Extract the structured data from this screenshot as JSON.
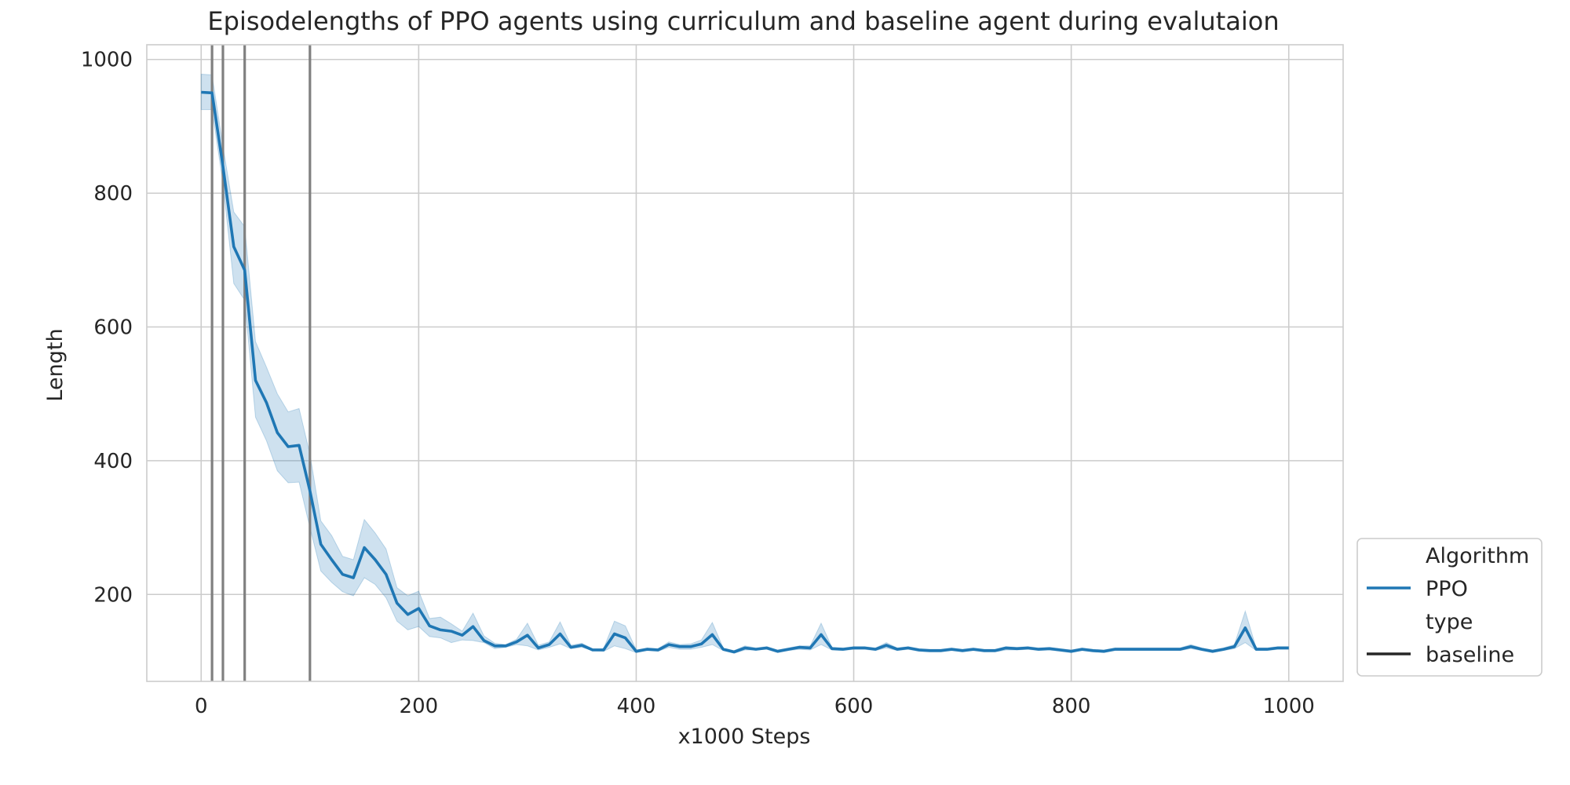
{
  "chart_data": {
    "type": "line",
    "title": "Episodelengths of PPO agents using curriculum and baseline agent during evalutaion",
    "xlabel": "x1000 Steps",
    "ylabel": "Length",
    "xlim": [
      -50,
      1050
    ],
    "ylim": [
      70,
      1022
    ],
    "xticks": [
      0,
      200,
      400,
      600,
      800,
      1000
    ],
    "yticks": [
      200,
      400,
      600,
      800,
      1000
    ],
    "grid": true,
    "series": [
      {
        "name": "PPO",
        "color": "#1f77b4",
        "x": [
          0,
          10,
          20,
          30,
          40,
          50,
          60,
          70,
          80,
          90,
          100,
          110,
          120,
          130,
          140,
          150,
          160,
          170,
          180,
          190,
          200,
          210,
          220,
          230,
          240,
          250,
          260,
          270,
          280,
          290,
          300,
          310,
          320,
          330,
          340,
          350,
          360,
          370,
          380,
          390,
          400,
          410,
          420,
          430,
          440,
          450,
          460,
          470,
          480,
          490,
          500,
          510,
          520,
          530,
          540,
          550,
          560,
          570,
          580,
          590,
          600,
          610,
          620,
          630,
          640,
          650,
          660,
          670,
          680,
          690,
          700,
          710,
          720,
          730,
          740,
          750,
          760,
          770,
          780,
          790,
          800,
          810,
          820,
          830,
          840,
          850,
          860,
          870,
          880,
          890,
          900,
          910,
          920,
          930,
          940,
          950,
          960,
          970,
          980,
          990,
          1000
        ],
        "y": [
          951,
          950,
          840,
          720,
          685,
          520,
          487,
          442,
          421,
          423,
          355,
          275,
          252,
          230,
          225,
          270,
          252,
          230,
          187,
          170,
          179,
          153,
          147,
          145,
          139,
          152,
          131,
          123,
          123,
          129,
          139,
          120,
          125,
          141,
          121,
          124,
          117,
          117,
          141,
          135,
          115,
          118,
          117,
          125,
          122,
          122,
          126,
          140,
          118,
          114,
          120,
          118,
          120,
          115,
          118,
          121,
          120,
          140,
          119,
          118,
          120,
          120,
          118,
          124,
          118,
          120,
          117,
          116,
          116,
          118,
          116,
          118,
          116,
          116,
          120,
          119,
          120,
          118,
          119,
          117,
          115,
          118,
          116,
          115,
          118,
          118,
          118,
          118,
          118,
          118,
          118,
          122,
          118,
          115,
          118,
          122,
          150,
          118,
          118,
          120,
          120
        ],
        "lower": [
          925,
          925,
          815,
          665,
          640,
          465,
          430,
          385,
          367,
          368,
          300,
          235,
          218,
          204,
          198,
          225,
          215,
          195,
          160,
          147,
          152,
          137,
          135,
          128,
          132,
          131,
          128,
          119,
          121,
          125,
          123,
          117,
          121,
          126,
          119,
          121,
          116,
          115,
          123,
          119,
          113,
          116,
          115,
          121,
          118,
          118,
          121,
          125,
          116,
          112,
          117,
          117,
          118,
          113,
          116,
          118,
          117,
          125,
          117,
          116,
          118,
          118,
          116,
          120,
          116,
          118,
          115,
          114,
          114,
          116,
          114,
          116,
          114,
          114,
          117,
          117,
          118,
          116,
          117,
          115,
          113,
          116,
          114,
          113,
          116,
          116,
          116,
          116,
          116,
          116,
          116,
          119,
          116,
          113,
          116,
          119,
          128,
          116,
          116,
          118,
          118
        ],
        "upper": [
          978,
          977,
          870,
          772,
          750,
          578,
          540,
          500,
          473,
          478,
          410,
          310,
          288,
          257,
          252,
          312,
          292,
          268,
          210,
          198,
          205,
          164,
          166,
          156,
          145,
          172,
          138,
          127,
          125,
          133,
          157,
          124,
          129,
          159,
          124,
          127,
          119,
          119,
          160,
          153,
          117,
          120,
          119,
          129,
          125,
          126,
          132,
          158,
          120,
          116,
          123,
          120,
          122,
          117,
          120,
          123,
          123,
          157,
          121,
          120,
          122,
          122,
          120,
          128,
          120,
          122,
          119,
          118,
          118,
          120,
          118,
          120,
          118,
          118,
          122,
          121,
          122,
          120,
          121,
          119,
          117,
          120,
          118,
          117,
          120,
          120,
          120,
          120,
          120,
          120,
          120,
          125,
          120,
          117,
          120,
          125,
          175,
          120,
          120,
          122,
          122
        ]
      }
    ],
    "vlines": {
      "name": "baseline",
      "color": "#808080",
      "x": [
        10,
        20,
        40,
        100
      ]
    },
    "legend": {
      "placement": "lower-right outside",
      "entries": [
        {
          "text": "Algorithm",
          "type": "header"
        },
        {
          "text": "PPO",
          "type": "line",
          "color": "#1f77b4"
        },
        {
          "text": "type",
          "type": "header"
        },
        {
          "text": "baseline",
          "type": "line",
          "color": "#262626"
        }
      ]
    }
  }
}
